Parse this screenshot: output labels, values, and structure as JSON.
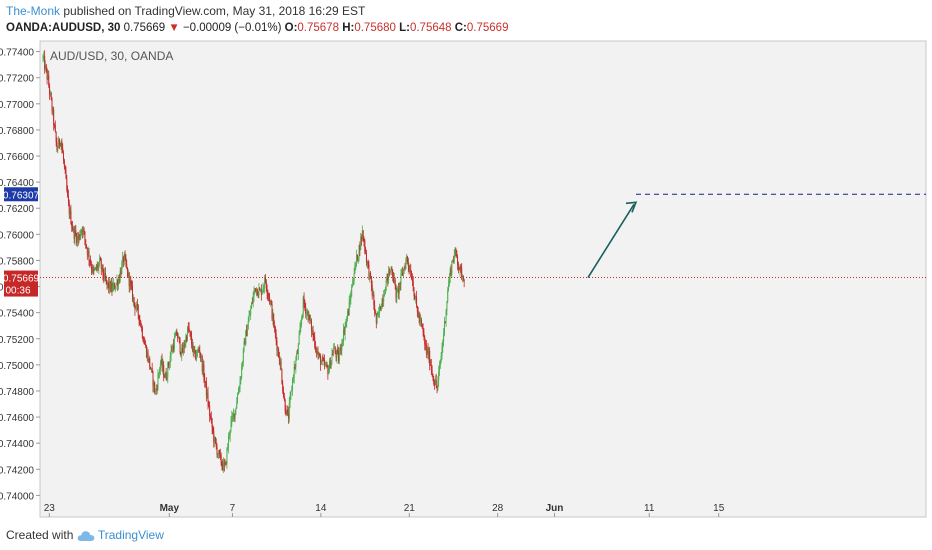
{
  "header": {
    "author": "The-Monk",
    "published": "published on TradingView.com, May 31, 2018 16:29 EST",
    "symbol_line": "OANDA:AUDUSD, 30",
    "last": "0.75669",
    "change": "−0.00009 (−0.01%)",
    "o_label": "O:",
    "o": "0.75678",
    "h_label": "H:",
    "h": "0.75680",
    "l_label": "L:",
    "l": "0.75648",
    "c_label": "C:",
    "c": "0.75669"
  },
  "footer": {
    "created_with": "Created with",
    "brand": "TradingView"
  },
  "colors": {
    "pane_bg": "#f2f2f2",
    "up": "#4caf50",
    "down": "#c62828",
    "price_line": "#c62828",
    "target_line": "#1a237e",
    "arrow": "#1b5e5e",
    "target_badge": "#1e3aa8",
    "price_badge": "#c62828"
  },
  "chart_data": {
    "type": "candlestick",
    "title": "AUD/USD, 30, OANDA",
    "ylim": [
      0.7398,
      0.7745
    ],
    "yticks": [
      "0.77400",
      "0.77200",
      "0.77000",
      "0.76800",
      "0.76600",
      "0.76400",
      "0.76200",
      "0.76000",
      "0.75800",
      "0.75600",
      "0.75400",
      "0.75200",
      "0.75000",
      "0.74800",
      "0.74600",
      "0.74400",
      "0.74200",
      "0.74000"
    ],
    "ytick_values": [
      0.774,
      0.772,
      0.77,
      0.768,
      0.766,
      0.764,
      0.762,
      0.76,
      0.758,
      0.756,
      0.754,
      0.752,
      0.75,
      0.748,
      0.746,
      0.744,
      0.742,
      0.74
    ],
    "xticks": [
      "23",
      "May",
      "7",
      "14",
      "21",
      "28",
      "Jun",
      "11",
      "15"
    ],
    "current_price": 0.75669,
    "current_price_label": "0.75669",
    "countdown": "00:36",
    "target_price": 0.76307,
    "target_label": "0.76307",
    "close_path": [
      [
        0,
        0.7735
      ],
      [
        0.4,
        0.7718
      ],
      [
        0.8,
        0.769
      ],
      [
        1.1,
        0.7665
      ],
      [
        1.4,
        0.7674
      ],
      [
        1.7,
        0.765
      ],
      [
        2.0,
        0.7622
      ],
      [
        2.4,
        0.7602
      ],
      [
        2.8,
        0.7596
      ],
      [
        3.1,
        0.7606
      ],
      [
        3.5,
        0.7588
      ],
      [
        4.0,
        0.757
      ],
      [
        4.5,
        0.7578
      ],
      [
        5.0,
        0.7562
      ],
      [
        5.5,
        0.7558
      ],
      [
        6.0,
        0.7566
      ],
      [
        6.4,
        0.7582
      ],
      [
        6.8,
        0.7566
      ],
      [
        7.2,
        0.7548
      ],
      [
        7.6,
        0.7538
      ],
      [
        8.0,
        0.7518
      ],
      [
        8.5,
        0.7498
      ],
      [
        8.9,
        0.7478
      ],
      [
        9.3,
        0.7502
      ],
      [
        9.7,
        0.749
      ],
      [
        10.2,
        0.7512
      ],
      [
        10.6,
        0.7524
      ],
      [
        11.0,
        0.7508
      ],
      [
        11.5,
        0.7528
      ],
      [
        12.0,
        0.7506
      ],
      [
        12.4,
        0.7512
      ],
      [
        12.8,
        0.7488
      ],
      [
        13.2,
        0.7462
      ],
      [
        13.6,
        0.744
      ],
      [
        14.0,
        0.7428
      ],
      [
        14.4,
        0.742
      ],
      [
        14.8,
        0.7452
      ],
      [
        15.2,
        0.7465
      ],
      [
        15.6,
        0.7488
      ],
      [
        16.0,
        0.752
      ],
      [
        16.4,
        0.754
      ],
      [
        16.8,
        0.756
      ],
      [
        17.2,
        0.7555
      ],
      [
        17.6,
        0.7565
      ],
      [
        18.0,
        0.7548
      ],
      [
        18.4,
        0.7522
      ],
      [
        18.8,
        0.75
      ],
      [
        19.1,
        0.7472
      ],
      [
        19.4,
        0.7458
      ],
      [
        19.8,
        0.7492
      ],
      [
        20.2,
        0.7512
      ],
      [
        20.6,
        0.7548
      ],
      [
        21.0,
        0.7538
      ],
      [
        21.4,
        0.7522
      ],
      [
        21.8,
        0.7506
      ],
      [
        22.2,
        0.75
      ],
      [
        22.6,
        0.7496
      ],
      [
        23.0,
        0.7512
      ],
      [
        23.4,
        0.7505
      ],
      [
        23.8,
        0.7525
      ],
      [
        24.2,
        0.7542
      ],
      [
        24.6,
        0.757
      ],
      [
        25.0,
        0.7588
      ],
      [
        25.3,
        0.7602
      ],
      [
        25.6,
        0.7582
      ],
      [
        26.0,
        0.756
      ],
      [
        26.4,
        0.7532
      ],
      [
        26.8,
        0.7548
      ],
      [
        27.2,
        0.7565
      ],
      [
        27.6,
        0.7575
      ],
      [
        28.0,
        0.7552
      ],
      [
        28.4,
        0.7568
      ],
      [
        28.8,
        0.7582
      ],
      [
        29.2,
        0.7568
      ],
      [
        29.6,
        0.7542
      ],
      [
        30.0,
        0.7528
      ],
      [
        30.3,
        0.7512
      ],
      [
        30.6,
        0.7505
      ],
      [
        30.9,
        0.749
      ],
      [
        31.2,
        0.7482
      ],
      [
        31.5,
        0.7505
      ],
      [
        31.8,
        0.7532
      ],
      [
        32.1,
        0.7562
      ],
      [
        32.4,
        0.758
      ],
      [
        32.7,
        0.7586
      ],
      [
        33.0,
        0.7572
      ],
      [
        33.4,
        0.7567
      ]
    ]
  }
}
